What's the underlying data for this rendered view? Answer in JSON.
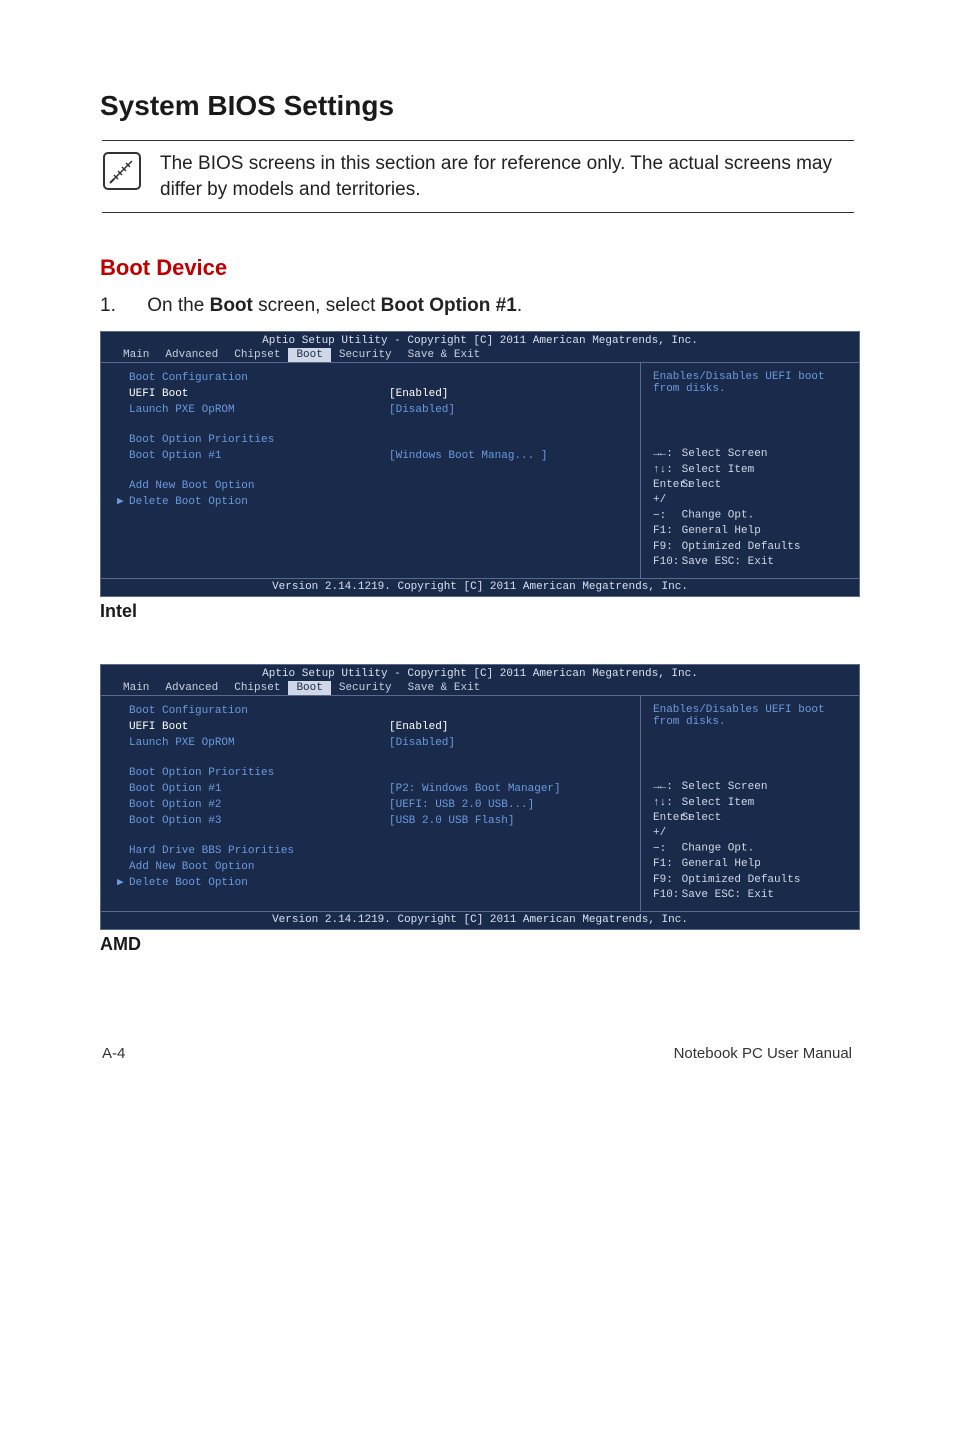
{
  "heading": "System BIOS Settings",
  "note_text": "The BIOS screens in this section are for reference only. The actual screens may differ by models and territories.",
  "sub_heading": "Boot Device",
  "step": {
    "num": "1.",
    "prefix": "On the ",
    "bold1": "Boot",
    "mid": " screen, select ",
    "bold2": "Boot Option #1",
    "suffix": "."
  },
  "bios_common": {
    "title": "Aptio Setup Utility - Copyright [C] 2011 American Megatrends, Inc.",
    "footer": "Version 2.14.1219. Copyright [C] 2011 American Megatrends, Inc.",
    "tabs": [
      "Main",
      "Advanced",
      "Chipset",
      "Boot",
      "Security",
      "Save & Exit"
    ],
    "active_tab_index": 3,
    "keys": [
      {
        "k": "→←:",
        "d": "Select Screen"
      },
      {
        "k": "↑↓:",
        "d": "Select Item"
      },
      {
        "k": "Enter:",
        "d": "Select"
      },
      {
        "k": "+/−:",
        "d": "Change Opt."
      },
      {
        "k": "F1:",
        "d": "General Help"
      },
      {
        "k": "F9:",
        "d": "Optimized Defaults"
      },
      {
        "k": "F10:",
        "d": "Save    ESC:  Exit"
      }
    ]
  },
  "intel_panel": {
    "help_text": "Enables/Disables UEFI boot from disks.",
    "rows": [
      {
        "type": "section",
        "label": "Boot Configuration"
      },
      {
        "type": "kv",
        "label": "UEFI Boot",
        "value": "[Enabled]",
        "selected": true
      },
      {
        "type": "kv",
        "label": "Launch PXE OpROM",
        "value": "[Disabled]"
      },
      {
        "type": "spacer"
      },
      {
        "type": "section",
        "label": "Boot Option Priorities"
      },
      {
        "type": "kv",
        "label": "Boot Option #1",
        "value": "[Windows Boot Manag... ]"
      },
      {
        "type": "spacer"
      },
      {
        "type": "plain",
        "label": "Add New Boot Option"
      },
      {
        "type": "tri",
        "label": "Delete Boot Option"
      }
    ],
    "caption": "Intel"
  },
  "amd_panel": {
    "help_text": "Enables/Disables UEFI boot from disks.",
    "rows": [
      {
        "type": "section",
        "label": "Boot Configuration"
      },
      {
        "type": "kv",
        "label": "UEFI Boot",
        "value": "[Enabled]",
        "selected": true
      },
      {
        "type": "kv",
        "label": "Launch PXE OpROM",
        "value": "[Disabled]"
      },
      {
        "type": "spacer"
      },
      {
        "type": "section",
        "label": "Boot Option Priorities"
      },
      {
        "type": "kv",
        "label": "Boot Option #1",
        "value": "[P2:  Windows Boot Manager]"
      },
      {
        "type": "kv",
        "label": "Boot Option #2",
        "value": "[UEFI: USB 2.0 USB...]"
      },
      {
        "type": "kv",
        "label": "Boot Option #3",
        "value": "[USB 2.0 USB Flash]"
      },
      {
        "type": "spacer"
      },
      {
        "type": "plain",
        "label": "Hard Drive BBS Priorities"
      },
      {
        "type": "plain",
        "label": "Add New Boot Option"
      },
      {
        "type": "tri",
        "label": "Delete Boot Option"
      }
    ],
    "caption": "AMD"
  },
  "footer": {
    "left": "A-4",
    "right": "Notebook PC User Manual"
  },
  "colors": {
    "bios_bg": "#1a2a4a",
    "bios_blue_text": "#6a9adf",
    "bios_light_text": "#d0d8e8",
    "heading_red": "#c00000"
  }
}
